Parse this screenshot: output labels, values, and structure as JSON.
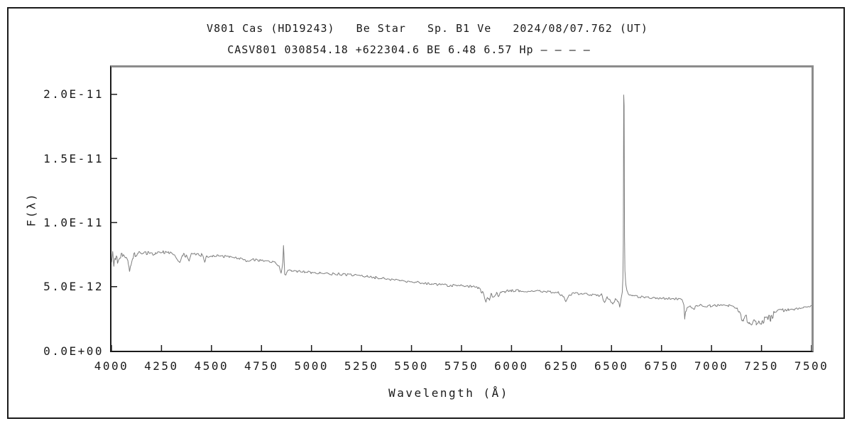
{
  "header": {
    "title_line1": "V801 Cas (HD19243)   Be Star   Sp. B1 Ve   2024/08/07.762 (UT)",
    "title_line2": "CASV801 030854.18 +622304.6 BE 6.48 6.57 Hp – – – –"
  },
  "chart_data": {
    "type": "line",
    "title": "V801 Cas (HD19243)   Be Star   Sp. B1 Ve   2024/08/07.762 (UT)",
    "subtitle": "CASV801 030854.18 +622304.6 BE 6.48 6.57 Hp – – – –",
    "xlabel": "Wavelength (Å)",
    "ylabel": "F(λ)",
    "xlim": [
      4000,
      7500
    ],
    "ylim": [
      0,
      2.21e-11
    ],
    "ylim_1e12": [
      0,
      22.1
    ],
    "xticks": [
      4000,
      4250,
      4500,
      4750,
      5000,
      5250,
      5500,
      5750,
      6000,
      6250,
      6500,
      6750,
      7000,
      7250,
      7500
    ],
    "yticks": [
      {
        "value_1e12": 0,
        "label": "0.0E+00"
      },
      {
        "value_1e12": 5,
        "label": "5.0E-12"
      },
      {
        "value_1e12": 10,
        "label": "1.0E-11"
      },
      {
        "value_1e12": 15,
        "label": "1.5E-11"
      },
      {
        "value_1e12": 20,
        "label": "2.0E-11"
      }
    ],
    "grid": false,
    "legend": "none",
    "line_color": "#7f7f7f",
    "flux_scale": 1e-12,
    "series": [
      {
        "name": "flux-spectrum",
        "anchor_points_1e12": [
          [
            4000,
            7.0
          ],
          [
            4006,
            7.75
          ],
          [
            4012,
            6.85
          ],
          [
            4020,
            7.4
          ],
          [
            4030,
            7.1
          ],
          [
            4042,
            7.45
          ],
          [
            4055,
            7.45
          ],
          [
            4070,
            7.2
          ],
          [
            4082,
            6.9
          ],
          [
            4090,
            6.35
          ],
          [
            4098,
            6.6
          ],
          [
            4108,
            7.25
          ],
          [
            4122,
            7.5
          ],
          [
            4140,
            7.6
          ],
          [
            4165,
            7.6
          ],
          [
            4195,
            7.65
          ],
          [
            4220,
            7.55
          ],
          [
            4238,
            7.65
          ],
          [
            4258,
            7.7
          ],
          [
            4285,
            7.65
          ],
          [
            4315,
            7.55
          ],
          [
            4332,
            7.05
          ],
          [
            4342,
            6.95
          ],
          [
            4355,
            7.5
          ],
          [
            4375,
            7.35
          ],
          [
            4388,
            6.9
          ],
          [
            4398,
            7.5
          ],
          [
            4425,
            7.55
          ],
          [
            4450,
            7.5
          ],
          [
            4465,
            7.0
          ],
          [
            4478,
            7.4
          ],
          [
            4505,
            7.45
          ],
          [
            4545,
            7.4
          ],
          [
            4590,
            7.3
          ],
          [
            4640,
            7.2
          ],
          [
            4685,
            6.95
          ],
          [
            4705,
            7.1
          ],
          [
            4745,
            7.05
          ],
          [
            4785,
            7.0
          ],
          [
            4815,
            6.9
          ],
          [
            4838,
            6.6
          ],
          [
            4848,
            6.0
          ],
          [
            4854,
            6.55
          ],
          [
            4857,
            7.0
          ],
          [
            4860,
            8.2
          ],
          [
            4862,
            7.6
          ],
          [
            4866,
            6.0
          ],
          [
            4872,
            5.9
          ],
          [
            4882,
            6.2
          ],
          [
            4900,
            6.25
          ],
          [
            4930,
            6.2
          ],
          [
            4965,
            6.15
          ],
          [
            5000,
            6.1
          ],
          [
            5040,
            6.05
          ],
          [
            5080,
            6.0
          ],
          [
            5120,
            6.0
          ],
          [
            5160,
            5.95
          ],
          [
            5200,
            5.9
          ],
          [
            5240,
            5.85
          ],
          [
            5280,
            5.8
          ],
          [
            5320,
            5.7
          ],
          [
            5360,
            5.65
          ],
          [
            5400,
            5.55
          ],
          [
            5440,
            5.5
          ],
          [
            5480,
            5.4
          ],
          [
            5520,
            5.35
          ],
          [
            5560,
            5.25
          ],
          [
            5600,
            5.2
          ],
          [
            5640,
            5.15
          ],
          [
            5680,
            5.1
          ],
          [
            5720,
            5.08
          ],
          [
            5760,
            5.05
          ],
          [
            5800,
            5.0
          ],
          [
            5835,
            4.9
          ],
          [
            5858,
            4.45
          ],
          [
            5872,
            3.8
          ],
          [
            5882,
            4.15
          ],
          [
            5890,
            3.85
          ],
          [
            5898,
            4.35
          ],
          [
            5912,
            4.2
          ],
          [
            5924,
            4.5
          ],
          [
            5936,
            4.3
          ],
          [
            5950,
            4.6
          ],
          [
            5970,
            4.65
          ],
          [
            6000,
            4.7
          ],
          [
            6040,
            4.68
          ],
          [
            6090,
            4.65
          ],
          [
            6140,
            4.62
          ],
          [
            6190,
            4.6
          ],
          [
            6235,
            4.52
          ],
          [
            6258,
            4.25
          ],
          [
            6272,
            3.85
          ],
          [
            6288,
            4.3
          ],
          [
            6308,
            4.45
          ],
          [
            6350,
            4.45
          ],
          [
            6395,
            4.4
          ],
          [
            6425,
            4.32
          ],
          [
            6450,
            4.38
          ],
          [
            6465,
            3.72
          ],
          [
            6478,
            4.15
          ],
          [
            6492,
            4.0
          ],
          [
            6507,
            3.6
          ],
          [
            6519,
            4.05
          ],
          [
            6530,
            3.95
          ],
          [
            6541,
            3.5
          ],
          [
            6549,
            4.15
          ],
          [
            6554,
            4.6
          ],
          [
            6557,
            5.6
          ],
          [
            6559,
            8.5
          ],
          [
            6561,
            20.0
          ],
          [
            6563,
            19.2
          ],
          [
            6565,
            9.0
          ],
          [
            6567,
            6.2
          ],
          [
            6571,
            5.2
          ],
          [
            6577,
            4.7
          ],
          [
            6586,
            4.45
          ],
          [
            6605,
            4.3
          ],
          [
            6640,
            4.2
          ],
          [
            6680,
            4.15
          ],
          [
            6720,
            4.12
          ],
          [
            6760,
            4.1
          ],
          [
            6800,
            4.06
          ],
          [
            6835,
            4.02
          ],
          [
            6855,
            3.98
          ],
          [
            6862,
            3.6
          ],
          [
            6866,
            2.45
          ],
          [
            6870,
            2.95
          ],
          [
            6876,
            3.3
          ],
          [
            6884,
            3.42
          ],
          [
            6898,
            3.45
          ],
          [
            6912,
            3.3
          ],
          [
            6928,
            3.5
          ],
          [
            6945,
            3.55
          ],
          [
            6968,
            3.45
          ],
          [
            6995,
            3.5
          ],
          [
            7025,
            3.55
          ],
          [
            7058,
            3.6
          ],
          [
            7085,
            3.52
          ],
          [
            7108,
            3.46
          ],
          [
            7128,
            3.25
          ],
          [
            7145,
            2.8
          ],
          [
            7160,
            2.4
          ],
          [
            7173,
            2.6
          ],
          [
            7188,
            2.2
          ],
          [
            7199,
            1.95
          ],
          [
            7210,
            2.45
          ],
          [
            7223,
            2.05
          ],
          [
            7236,
            2.4
          ],
          [
            7250,
            2.15
          ],
          [
            7265,
            2.5
          ],
          [
            7280,
            2.65
          ],
          [
            7296,
            2.55
          ],
          [
            7312,
            2.85
          ],
          [
            7332,
            3.0
          ],
          [
            7355,
            3.1
          ],
          [
            7385,
            3.2
          ],
          [
            7415,
            3.28
          ],
          [
            7445,
            3.33
          ],
          [
            7472,
            3.38
          ],
          [
            7500,
            3.42
          ]
        ]
      }
    ],
    "noise_base_1e12": 0.09,
    "noise_bands": [
      {
        "range": [
          4000,
          4115
        ],
        "amp_1e12": 0.28
      },
      {
        "range": [
          4115,
          4520
        ],
        "amp_1e12": 0.14
      },
      {
        "range": [
          5840,
          5990
        ],
        "amp_1e12": 0.13
      },
      {
        "range": [
          6430,
          6550
        ],
        "amp_1e12": 0.11
      },
      {
        "range": [
          7130,
          7360
        ],
        "amp_1e12": 0.26
      },
      {
        "range": [
          7360,
          7500
        ],
        "amp_1e12": 0.12
      }
    ]
  },
  "colors": {
    "background": "#ffffff",
    "frame_dark": "#1a1a1a",
    "frame_gray": "#8c8c8c",
    "text": "#1a1a1a",
    "spectrum_line": "#7f7f7f"
  }
}
